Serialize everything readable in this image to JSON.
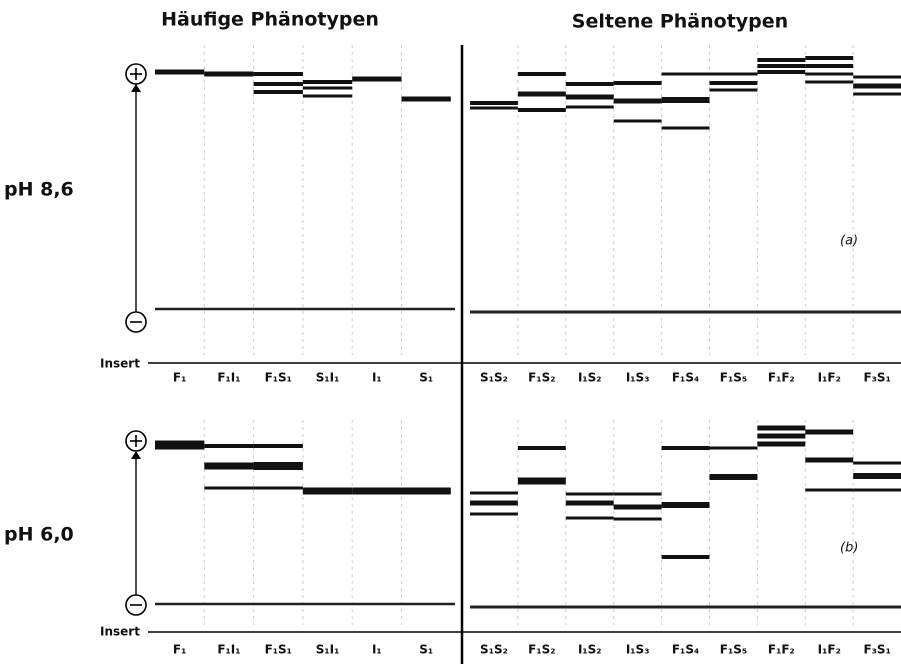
{
  "header": {
    "common": "Häufige Phänotypen",
    "rare": "Seltene Phänotypen"
  },
  "panels": [
    {
      "ph": "pH  8,6",
      "tag": "(a)",
      "insert": "Insert",
      "lanes": [
        "F₁",
        "F₁I₁",
        "F₁S₁",
        "S₁I₁",
        "I₁",
        "S₁",
        "S₁S₂",
        "F₁S₂",
        "I₁S₂",
        "I₁S₃",
        "F₁S₄",
        "F₁S₅",
        "F₁F₂",
        "I₁F₂",
        "F₃S₁"
      ]
    },
    {
      "ph": "pH  6,0",
      "tag": "(b)",
      "insert": "Insert",
      "lanes": [
        "F₁",
        "F₁I₁",
        "F₁S₁",
        "S₁I₁",
        "I₁",
        "S₁",
        "S₁S₂",
        "F₁S₂",
        "I₁S₂",
        "I₁S₃",
        "F₁S₄",
        "F₁S₅",
        "F₁F₂",
        "I₁F₂",
        "F₃S₁"
      ]
    }
  ]
}
